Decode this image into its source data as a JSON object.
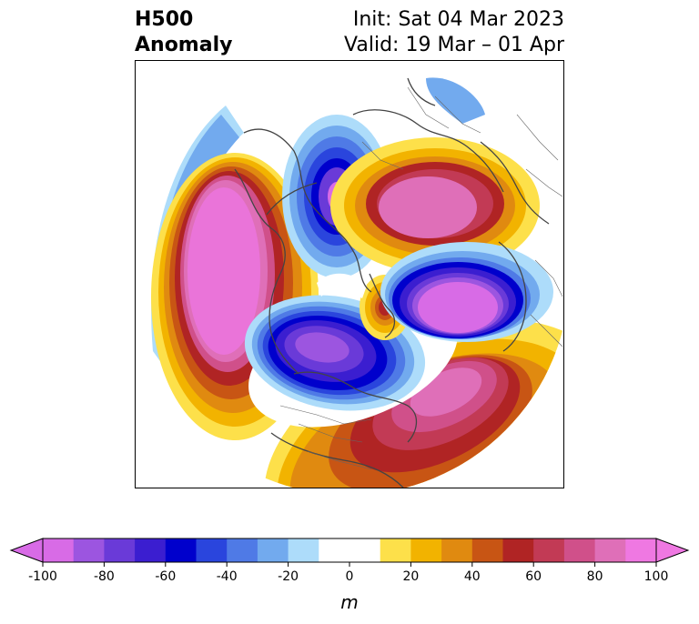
{
  "title": {
    "left_line1": "H500",
    "left_line2": "Anomaly",
    "right_line1": "Init: Sat 04 Mar 2023",
    "right_line2": "Valid: 19 Mar – 01 Apr"
  },
  "colorbar": {
    "unit": "m",
    "range": [
      -100,
      100
    ],
    "ticks": [
      "-100",
      "-80",
      "-60",
      "-40",
      "-20",
      "0",
      "20",
      "40",
      "60",
      "80",
      "100"
    ],
    "colors": [
      "#d86be6",
      "#9c55e0",
      "#6a3ad8",
      "#3b1ed0",
      "#0000cc",
      "#2a45dd",
      "#4f7ae6",
      "#72aaee",
      "#addcfa",
      "#ffffff",
      "#ffffff",
      "#fde04a",
      "#f2b300",
      "#e08a10",
      "#c85514",
      "#b02424",
      "#c23a55",
      "#d0508a",
      "#df6fb8",
      "#ef78e2"
    ],
    "extend_low_color": "#d86be6",
    "extend_high_color": "#ef78e2"
  },
  "map": {
    "projection": "north-polar-stereographic",
    "features": [
      "North America",
      "Greenland",
      "Europe",
      "Asia",
      "Arctic"
    ]
  }
}
